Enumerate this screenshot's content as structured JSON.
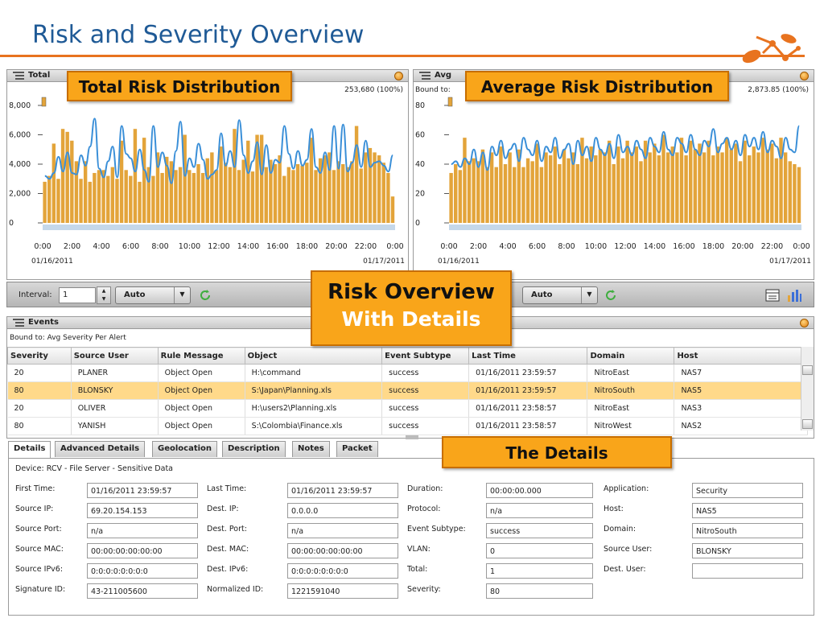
{
  "slide": {
    "title": "Risk and Severity Overview"
  },
  "callouts": {
    "total": "Total Risk Distribution",
    "average": "Average Risk Distribution",
    "overview_line1": "Risk Overview",
    "overview_line2": "With Details",
    "details": "The Details"
  },
  "left_chart": {
    "header": "Total",
    "total": "253,680 (100%)",
    "date_start": "01/16/2011",
    "date_end": "01/17/2011"
  },
  "right_chart": {
    "header": "Avg",
    "bound": "Bound to:",
    "total": "2,873.85 (100%)",
    "date_start": "01/16/2011",
    "date_end": "01/17/2011"
  },
  "chart_data": [
    {
      "type": "bar",
      "xlabel": "",
      "ylabel": "",
      "ylim": [
        0,
        8000
      ],
      "yticks": [
        "0",
        "2,000",
        "4,000",
        "6,000",
        "8,000"
      ],
      "xticks": [
        "0:00",
        "2:00",
        "4:00",
        "6:00",
        "8:00",
        "10:00",
        "12:00",
        "14:00",
        "16:00",
        "18:00",
        "20:00",
        "22:00",
        "0:00"
      ],
      "values": [
        2800,
        3200,
        5400,
        3000,
        6400,
        6200,
        5600,
        4200,
        3000,
        4200,
        2800,
        3400,
        3600,
        3600,
        3200,
        3800,
        3000,
        5600,
        3600,
        3200,
        6400,
        2800,
        5800,
        3800,
        3200,
        4800,
        3400,
        4500,
        4200,
        3600,
        3800,
        6000,
        3600,
        3400,
        4000,
        3400,
        4400,
        4800,
        3600,
        5200,
        4100,
        3800,
        6400,
        3600,
        4300,
        5600,
        3500,
        6000,
        6000,
        3800,
        4300,
        4000,
        4600,
        3200,
        3800,
        3600,
        4000,
        3900,
        4100,
        5800,
        3600,
        4400,
        4600,
        4800,
        3600,
        4200,
        4000,
        3800,
        4200,
        6600,
        3700,
        4800,
        5100,
        4800,
        4600,
        4100,
        3400,
        1800
      ],
      "line": [
        3200,
        3000,
        3400,
        4500,
        3500,
        4800,
        3400,
        3300,
        4600,
        3900,
        5200,
        7100,
        3700,
        3100,
        4200,
        5200,
        3100,
        6600,
        4700,
        4400,
        3500,
        5000,
        3600,
        2800,
        6600,
        3800,
        4800,
        3900,
        2700,
        4900,
        6900,
        3200,
        4400,
        3800,
        5400,
        4300,
        3000,
        3300,
        3600,
        6100,
        3900,
        4900,
        3800,
        7000,
        4600,
        3400,
        4200,
        5500,
        3300,
        5300,
        3400,
        4300,
        4100,
        6600,
        4700,
        3700,
        4900,
        3900,
        4300,
        6400,
        3800,
        3400,
        4800,
        3600,
        6600,
        3700,
        6700,
        3500,
        4100,
        5300,
        3800,
        5600,
        3800,
        4100,
        4200,
        3900,
        3500,
        4600
      ],
      "line_color": "#3a8fd8",
      "bar_color": "#e3a43a"
    },
    {
      "type": "bar",
      "xlabel": "",
      "ylabel": "",
      "ylim": [
        0,
        80
      ],
      "yticks": [
        "0",
        "20",
        "40",
        "60",
        "80"
      ],
      "xticks": [
        "0:00",
        "2:00",
        "4:00",
        "6:00",
        "8:00",
        "10:00",
        "12:00",
        "14:00",
        "16:00",
        "18:00",
        "20:00",
        "22:00",
        "0:00"
      ],
      "values": [
        34,
        40,
        36,
        58,
        42,
        44,
        42,
        50,
        38,
        48,
        38,
        52,
        40,
        48,
        38,
        50,
        38,
        44,
        42,
        54,
        38,
        48,
        46,
        52,
        40,
        50,
        44,
        48,
        40,
        58,
        44,
        52,
        46,
        50,
        48,
        56,
        40,
        52,
        44,
        56,
        48,
        52,
        42,
        56,
        48,
        54,
        46,
        60,
        48,
        52,
        48,
        58,
        46,
        56,
        50,
        54,
        48,
        56,
        46,
        52,
        48,
        58,
        50,
        54,
        42,
        56,
        46,
        52,
        48,
        58,
        50,
        54,
        44,
        58,
        48,
        42,
        40,
        38
      ],
      "line": [
        40,
        42,
        38,
        44,
        40,
        50,
        38,
        48,
        36,
        52,
        46,
        56,
        44,
        50,
        54,
        42,
        58,
        50,
        46,
        56,
        42,
        52,
        48,
        58,
        44,
        50,
        54,
        40,
        56,
        46,
        52,
        42,
        58,
        50,
        46,
        54,
        44,
        60,
        48,
        52,
        46,
        56,
        50,
        44,
        58,
        52,
        48,
        62,
        50,
        46,
        58,
        54,
        48,
        60,
        50,
        46,
        56,
        52,
        64,
        48,
        54,
        58,
        50,
        56,
        46,
        60,
        52,
        58,
        50,
        62,
        48,
        56,
        52,
        44,
        58,
        50,
        48,
        66
      ],
      "line_color": "#3a8fd8",
      "bar_color": "#e3a43a"
    }
  ],
  "toolbar": {
    "interval_label": "Interval:",
    "interval_value": "1",
    "auto_left": "Auto",
    "auto_right": "Auto"
  },
  "events": {
    "title": "Events",
    "bound": "Bound to: Avg Severity Per Alert",
    "columns": [
      "Severity",
      "Source User",
      "Rule Message",
      "Object",
      "Event Subtype",
      "Last Time",
      "Domain",
      "Host"
    ],
    "rows": [
      [
        "20",
        "PLANER",
        "Object Open",
        "H:\\command",
        "success",
        "01/16/2011 23:59:57",
        "NitroEast",
        "NAS7"
      ],
      [
        "80",
        "BLONSKY",
        "Object Open",
        "S:\\Japan\\Planning.xls",
        "success",
        "01/16/2011 23:59:57",
        "NitroSouth",
        "NAS5"
      ],
      [
        "20",
        "OLIVER",
        "Object Open",
        "H:\\users2\\Planning.xls",
        "success",
        "01/16/2011 23:58:57",
        "NitroEast",
        "NAS3"
      ],
      [
        "80",
        "YANISH",
        "Object Open",
        "S:\\Colombia\\Finance.xls",
        "success",
        "01/16/2011 23:58:57",
        "NitroWest",
        "NAS2"
      ]
    ]
  },
  "tabs": [
    "Details",
    "Advanced Details",
    "Geolocation",
    "Description",
    "Notes",
    "Packet"
  ],
  "details": {
    "device": "Device: RCV - File Server - Sensitive Data",
    "col1": [
      {
        "label": "First Time:",
        "value": "01/16/2011 23:59:57"
      },
      {
        "label": "Source IP:",
        "value": "69.20.154.153"
      },
      {
        "label": "Source Port:",
        "value": "n/a"
      },
      {
        "label": "Source MAC:",
        "value": "00:00:00:00:00:00"
      },
      {
        "label": "Source IPv6:",
        "value": "0:0:0:0:0:0:0:0"
      },
      {
        "label": "Signature ID:",
        "value": "43-211005600"
      }
    ],
    "col2": [
      {
        "label": "Last Time:",
        "value": "01/16/2011 23:59:57"
      },
      {
        "label": "Dest. IP:",
        "value": "0.0.0.0"
      },
      {
        "label": "Dest. Port:",
        "value": "n/a"
      },
      {
        "label": "Dest. MAC:",
        "value": "00:00:00:00:00:00"
      },
      {
        "label": "Dest. IPv6:",
        "value": "0:0:0:0:0:0:0:0"
      },
      {
        "label": "Normalized ID:",
        "value": "1221591040"
      }
    ],
    "col3": [
      {
        "label": "Duration:",
        "value": "00:00:00.000"
      },
      {
        "label": "Protocol:",
        "value": "n/a"
      },
      {
        "label": "Event Subtype:",
        "value": "success"
      },
      {
        "label": "VLAN:",
        "value": "0"
      },
      {
        "label": "Total:",
        "value": "1"
      },
      {
        "label": "Severity:",
        "value": "80"
      }
    ],
    "col4": [
      {
        "label": "Application:",
        "value": "Security"
      },
      {
        "label": "Host:",
        "value": "NAS5"
      },
      {
        "label": "Domain:",
        "value": "NitroSouth"
      },
      {
        "label": "Source User:",
        "value": "BLONSKY"
      },
      {
        "label": "Dest. User:",
        "value": ""
      }
    ]
  }
}
